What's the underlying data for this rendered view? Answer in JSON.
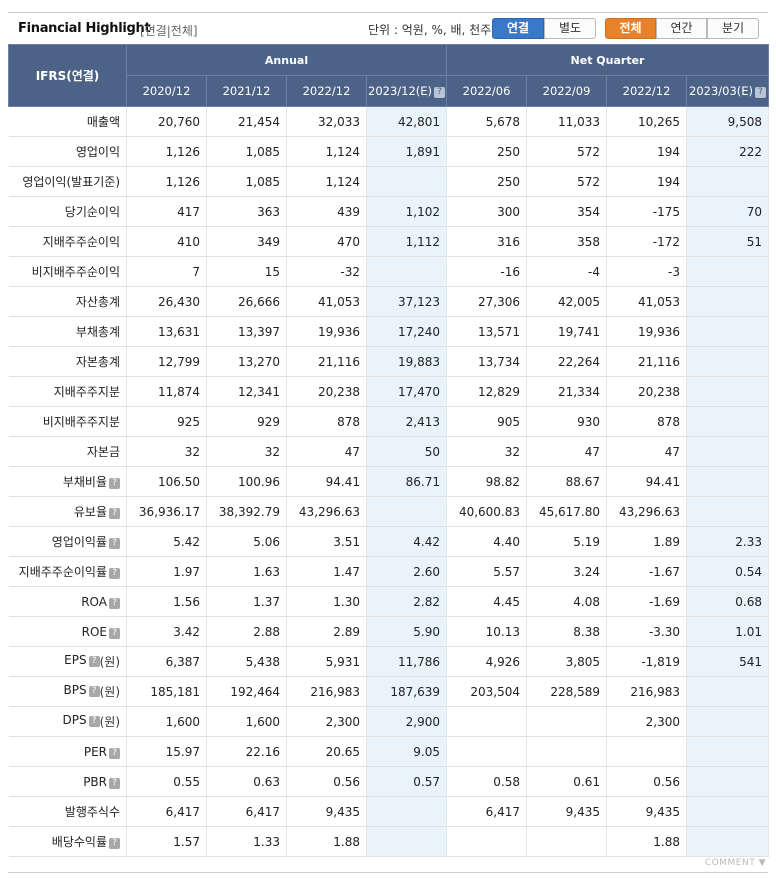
{
  "header": {
    "title": "Financial Highlight",
    "subtitle": "[연결|전체]",
    "unit": "단위 : 억원, %, 배, 천주",
    "consolidation_tabs": [
      "연결",
      "별도"
    ],
    "period_tabs": [
      "전체",
      "연간",
      "분기"
    ]
  },
  "table": {
    "corner": "IFRS(연결)",
    "annual_label": "Annual",
    "quarter_label": "Net Quarter",
    "columns": [
      "2020/12",
      "2021/12",
      "2022/12",
      "2023/12(E)",
      "2022/06",
      "2022/09",
      "2022/12",
      "2023/03(E)"
    ],
    "rows": [
      {
        "label": "매출액",
        "indent": false,
        "help": false,
        "unit": "",
        "values": [
          "20,760",
          "21,454",
          "32,033",
          "42,801",
          "5,678",
          "11,033",
          "10,265",
          "9,508"
        ]
      },
      {
        "label": "영업이익",
        "indent": false,
        "help": false,
        "unit": "",
        "values": [
          "1,126",
          "1,085",
          "1,124",
          "1,891",
          "250",
          "572",
          "194",
          "222"
        ]
      },
      {
        "label": "영업이익(발표기준)",
        "indent": false,
        "help": false,
        "unit": "",
        "values": [
          "1,126",
          "1,085",
          "1,124",
          "",
          "250",
          "572",
          "194",
          ""
        ]
      },
      {
        "label": "당기순이익",
        "indent": false,
        "help": false,
        "unit": "",
        "values": [
          "417",
          "363",
          "439",
          "1,102",
          "300",
          "354",
          "-175",
          "70"
        ]
      },
      {
        "label": "지배주주순이익",
        "indent": true,
        "help": false,
        "unit": "",
        "values": [
          "410",
          "349",
          "470",
          "1,112",
          "316",
          "358",
          "-172",
          "51"
        ]
      },
      {
        "label": "비지배주주순이익",
        "indent": true,
        "help": false,
        "unit": "",
        "values": [
          "7",
          "15",
          "-32",
          "",
          "-16",
          "-4",
          "-3",
          ""
        ]
      },
      {
        "label": "자산총계",
        "indent": false,
        "help": false,
        "unit": "",
        "values": [
          "26,430",
          "26,666",
          "41,053",
          "37,123",
          "27,306",
          "42,005",
          "41,053",
          ""
        ]
      },
      {
        "label": "부채총계",
        "indent": false,
        "help": false,
        "unit": "",
        "values": [
          "13,631",
          "13,397",
          "19,936",
          "17,240",
          "13,571",
          "19,741",
          "19,936",
          ""
        ]
      },
      {
        "label": "자본총계",
        "indent": false,
        "help": false,
        "unit": "",
        "values": [
          "12,799",
          "13,270",
          "21,116",
          "19,883",
          "13,734",
          "22,264",
          "21,116",
          ""
        ]
      },
      {
        "label": "지배주주지분",
        "indent": true,
        "help": false,
        "unit": "",
        "values": [
          "11,874",
          "12,341",
          "20,238",
          "17,470",
          "12,829",
          "21,334",
          "20,238",
          ""
        ]
      },
      {
        "label": "비지배주주지분",
        "indent": true,
        "help": false,
        "unit": "",
        "values": [
          "925",
          "929",
          "878",
          "2,413",
          "905",
          "930",
          "878",
          ""
        ]
      },
      {
        "label": "자본금",
        "indent": false,
        "help": false,
        "unit": "",
        "values": [
          "32",
          "32",
          "47",
          "50",
          "32",
          "47",
          "47",
          ""
        ]
      },
      {
        "label": "부채비율",
        "indent": false,
        "help": true,
        "unit": "",
        "values": [
          "106.50",
          "100.96",
          "94.41",
          "86.71",
          "98.82",
          "88.67",
          "94.41",
          ""
        ]
      },
      {
        "label": "유보율",
        "indent": false,
        "help": true,
        "unit": "",
        "values": [
          "36,936.17",
          "38,392.79",
          "43,296.63",
          "",
          "40,600.83",
          "45,617.80",
          "43,296.63",
          ""
        ]
      },
      {
        "label": "영업이익률",
        "indent": false,
        "help": true,
        "unit": "",
        "values": [
          "5.42",
          "5.06",
          "3.51",
          "4.42",
          "4.40",
          "5.19",
          "1.89",
          "2.33"
        ]
      },
      {
        "label": "지배주주순이익률",
        "indent": false,
        "help": true,
        "unit": "",
        "values": [
          "1.97",
          "1.63",
          "1.47",
          "2.60",
          "5.57",
          "3.24",
          "-1.67",
          "0.54"
        ]
      },
      {
        "label": "ROA",
        "indent": false,
        "help": true,
        "unit": "",
        "values": [
          "1.56",
          "1.37",
          "1.30",
          "2.82",
          "4.45",
          "4.08",
          "-1.69",
          "0.68"
        ]
      },
      {
        "label": "ROE",
        "indent": false,
        "help": true,
        "unit": "",
        "values": [
          "3.42",
          "2.88",
          "2.89",
          "5.90",
          "10.13",
          "8.38",
          "-3.30",
          "1.01"
        ]
      },
      {
        "label": "EPS",
        "indent": false,
        "help": true,
        "unit": "(원)",
        "values": [
          "6,387",
          "5,438",
          "5,931",
          "11,786",
          "4,926",
          "3,805",
          "-1,819",
          "541"
        ]
      },
      {
        "label": "BPS",
        "indent": false,
        "help": true,
        "unit": "(원)",
        "values": [
          "185,181",
          "192,464",
          "216,983",
          "187,639",
          "203,504",
          "228,589",
          "216,983",
          ""
        ]
      },
      {
        "label": "DPS",
        "indent": false,
        "help": true,
        "unit": "(원)",
        "values": [
          "1,600",
          "1,600",
          "2,300",
          "2,900",
          "",
          "",
          "2,300",
          ""
        ]
      },
      {
        "label": "PER",
        "indent": false,
        "help": true,
        "unit": "",
        "values": [
          "15.97",
          "22.16",
          "20.65",
          "9.05",
          "",
          "",
          "",
          ""
        ]
      },
      {
        "label": "PBR",
        "indent": false,
        "help": true,
        "unit": "",
        "values": [
          "0.55",
          "0.63",
          "0.56",
          "0.57",
          "0.58",
          "0.61",
          "0.56",
          ""
        ]
      },
      {
        "label": "발행주식수",
        "indent": false,
        "help": false,
        "unit": "",
        "values": [
          "6,417",
          "6,417",
          "9,435",
          "",
          "6,417",
          "9,435",
          "9,435",
          ""
        ]
      },
      {
        "label": "배당수익률",
        "indent": false,
        "help": true,
        "unit": "",
        "values": [
          "1.57",
          "1.33",
          "1.88",
          "",
          "",
          "",
          "1.88",
          ""
        ]
      }
    ]
  },
  "footer": {
    "comment_label": "COMMENT ▼"
  },
  "colors": {
    "header_bg": "#4c6387",
    "estimate_bg": "#e9f3fb",
    "negative": "#e0202a",
    "tab_blue": "#3a78c9",
    "tab_orange": "#e8822a"
  }
}
